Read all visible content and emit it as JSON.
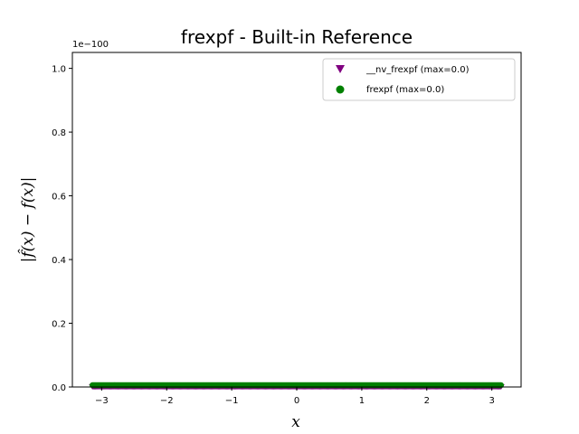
{
  "chart_data": {
    "type": "scatter",
    "title": "frexpf - Built-in Reference",
    "xlabel": "x",
    "ylabel": "|f̂(x) − f(x)|",
    "y_offset_text": "1e−100",
    "xlim": [
      -3.45,
      3.45
    ],
    "ylim": [
      0.0,
      1.05
    ],
    "x_ticks": [
      -3,
      -2,
      -1,
      0,
      1,
      2,
      3
    ],
    "x_tick_labels": [
      "−3",
      "−2",
      "−1",
      "0",
      "1",
      "2",
      "3"
    ],
    "y_ticks": [
      0.0,
      0.2,
      0.4,
      0.6,
      0.8,
      1.0
    ],
    "y_tick_labels": [
      "0.0",
      "0.2",
      "0.4",
      "0.6",
      "0.8",
      "1.0"
    ],
    "grid": false,
    "legend_position": "top-right",
    "x_range": [
      -3.14159,
      3.14159
    ],
    "series": [
      {
        "name": "__nv_frexpf (max=0.0)",
        "marker": "triangle-down",
        "color": "#800080",
        "y_value": 0.0
      },
      {
        "name": "frexpf (max=0.0)",
        "marker": "circle",
        "color": "#008000",
        "y_value": 0.0
      }
    ]
  }
}
